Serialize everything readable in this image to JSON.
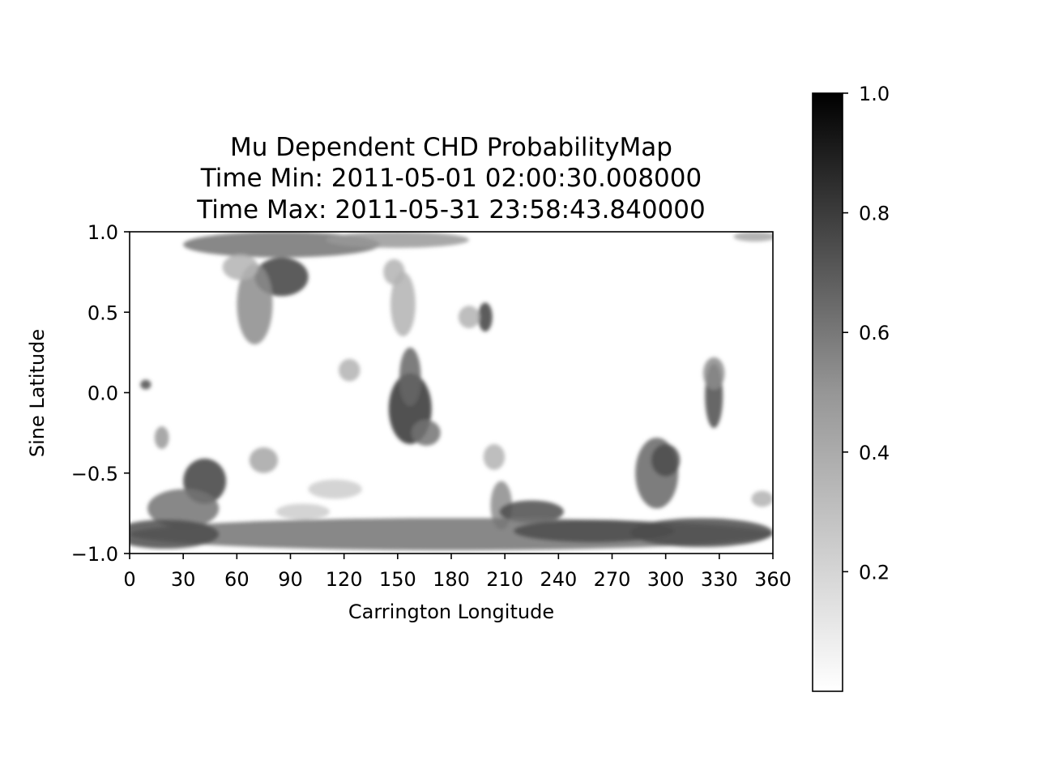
{
  "chart_data": {
    "type": "heatmap",
    "title_lines": [
      "Mu Dependent CHD ProbabilityMap",
      "Time Min: 2011-05-01 02:00:30.008000",
      "Time Max: 2011-05-31 23:58:43.840000"
    ],
    "xlabel": "Carrington Longitude",
    "ylabel": "Sine Latitude",
    "xlim": [
      0,
      360
    ],
    "ylim": [
      -1.0,
      1.0
    ],
    "xticks": [
      0,
      30,
      60,
      90,
      120,
      150,
      180,
      210,
      240,
      270,
      300,
      330,
      360
    ],
    "xtick_labels": [
      "0",
      "30",
      "60",
      "90",
      "120",
      "150",
      "180",
      "210",
      "240",
      "270",
      "300",
      "330",
      "360"
    ],
    "yticks": [
      1.0,
      0.5,
      0.0,
      -0.5,
      -1.0
    ],
    "ytick_labels": [
      "1.0",
      "0.5",
      "0.0",
      "−0.5",
      "−1.0"
    ],
    "colormap": "Greys",
    "colorbar": {
      "range": [
        0.0,
        1.0
      ],
      "ticks": [
        1.0,
        0.8,
        0.6,
        0.4,
        0.2
      ],
      "tick_labels": [
        "1.0",
        "0.8",
        "0.6",
        "0.4",
        "0.2"
      ]
    },
    "regions": [
      {
        "lon": 85,
        "lat": 0.92,
        "rlon": 55,
        "rlat": 0.08,
        "value": 0.55
      },
      {
        "lon": 150,
        "lat": 0.95,
        "rlon": 40,
        "rlat": 0.05,
        "value": 0.4
      },
      {
        "lon": 350,
        "lat": 0.97,
        "rlon": 12,
        "rlat": 0.03,
        "value": 0.35
      },
      {
        "lon": 85,
        "lat": 0.72,
        "rlon": 15,
        "rlat": 0.12,
        "value": 0.75
      },
      {
        "lon": 70,
        "lat": 0.55,
        "rlon": 10,
        "rlat": 0.25,
        "value": 0.45
      },
      {
        "lon": 62,
        "lat": 0.78,
        "rlon": 10,
        "rlat": 0.08,
        "value": 0.3
      },
      {
        "lon": 153,
        "lat": 0.55,
        "rlon": 7,
        "rlat": 0.2,
        "value": 0.3
      },
      {
        "lon": 148,
        "lat": 0.75,
        "rlon": 6,
        "rlat": 0.08,
        "value": 0.3
      },
      {
        "lon": 199,
        "lat": 0.47,
        "rlon": 4,
        "rlat": 0.09,
        "value": 0.75
      },
      {
        "lon": 190,
        "lat": 0.47,
        "rlon": 6,
        "rlat": 0.07,
        "value": 0.3
      },
      {
        "lon": 123,
        "lat": 0.14,
        "rlon": 6,
        "rlat": 0.07,
        "value": 0.3
      },
      {
        "lon": 157,
        "lat": -0.1,
        "rlon": 12,
        "rlat": 0.22,
        "value": 0.8
      },
      {
        "lon": 157,
        "lat": 0.1,
        "rlon": 6,
        "rlat": 0.18,
        "value": 0.6
      },
      {
        "lon": 166,
        "lat": -0.25,
        "rlon": 8,
        "rlat": 0.08,
        "value": 0.55
      },
      {
        "lon": 9,
        "lat": 0.05,
        "rlon": 3,
        "rlat": 0.03,
        "value": 0.7
      },
      {
        "lon": 18,
        "lat": -0.28,
        "rlon": 4,
        "rlat": 0.07,
        "value": 0.4
      },
      {
        "lon": 42,
        "lat": -0.55,
        "rlon": 12,
        "rlat": 0.14,
        "value": 0.75
      },
      {
        "lon": 30,
        "lat": -0.72,
        "rlon": 20,
        "rlat": 0.12,
        "value": 0.55
      },
      {
        "lon": 75,
        "lat": -0.42,
        "rlon": 8,
        "rlat": 0.08,
        "value": 0.35
      },
      {
        "lon": 115,
        "lat": -0.6,
        "rlon": 15,
        "rlat": 0.06,
        "value": 0.2
      },
      {
        "lon": 97,
        "lat": -0.74,
        "rlon": 15,
        "rlat": 0.05,
        "value": 0.2
      },
      {
        "lon": 204,
        "lat": -0.4,
        "rlon": 6,
        "rlat": 0.08,
        "value": 0.3
      },
      {
        "lon": 208,
        "lat": -0.7,
        "rlon": 6,
        "rlat": 0.15,
        "value": 0.45
      },
      {
        "lon": 225,
        "lat": -0.74,
        "rlon": 18,
        "rlat": 0.07,
        "value": 0.7
      },
      {
        "lon": 295,
        "lat": -0.5,
        "rlon": 12,
        "rlat": 0.22,
        "value": 0.6
      },
      {
        "lon": 300,
        "lat": -0.42,
        "rlon": 8,
        "rlat": 0.1,
        "value": 0.7
      },
      {
        "lon": 327,
        "lat": -0.02,
        "rlon": 5,
        "rlat": 0.2,
        "value": 0.7
      },
      {
        "lon": 327,
        "lat": 0.12,
        "rlon": 6,
        "rlat": 0.1,
        "value": 0.45
      },
      {
        "lon": 180,
        "lat": -0.88,
        "rlon": 180,
        "rlat": 0.1,
        "value": 0.55
      },
      {
        "lon": 20,
        "lat": -0.88,
        "rlon": 30,
        "rlat": 0.09,
        "value": 0.7
      },
      {
        "lon": 320,
        "lat": -0.87,
        "rlon": 40,
        "rlat": 0.09,
        "value": 0.7
      },
      {
        "lon": 260,
        "lat": -0.86,
        "rlon": 45,
        "rlat": 0.07,
        "value": 0.7
      },
      {
        "lon": 354,
        "lat": -0.66,
        "rlon": 6,
        "rlat": 0.05,
        "value": 0.3
      }
    ]
  }
}
